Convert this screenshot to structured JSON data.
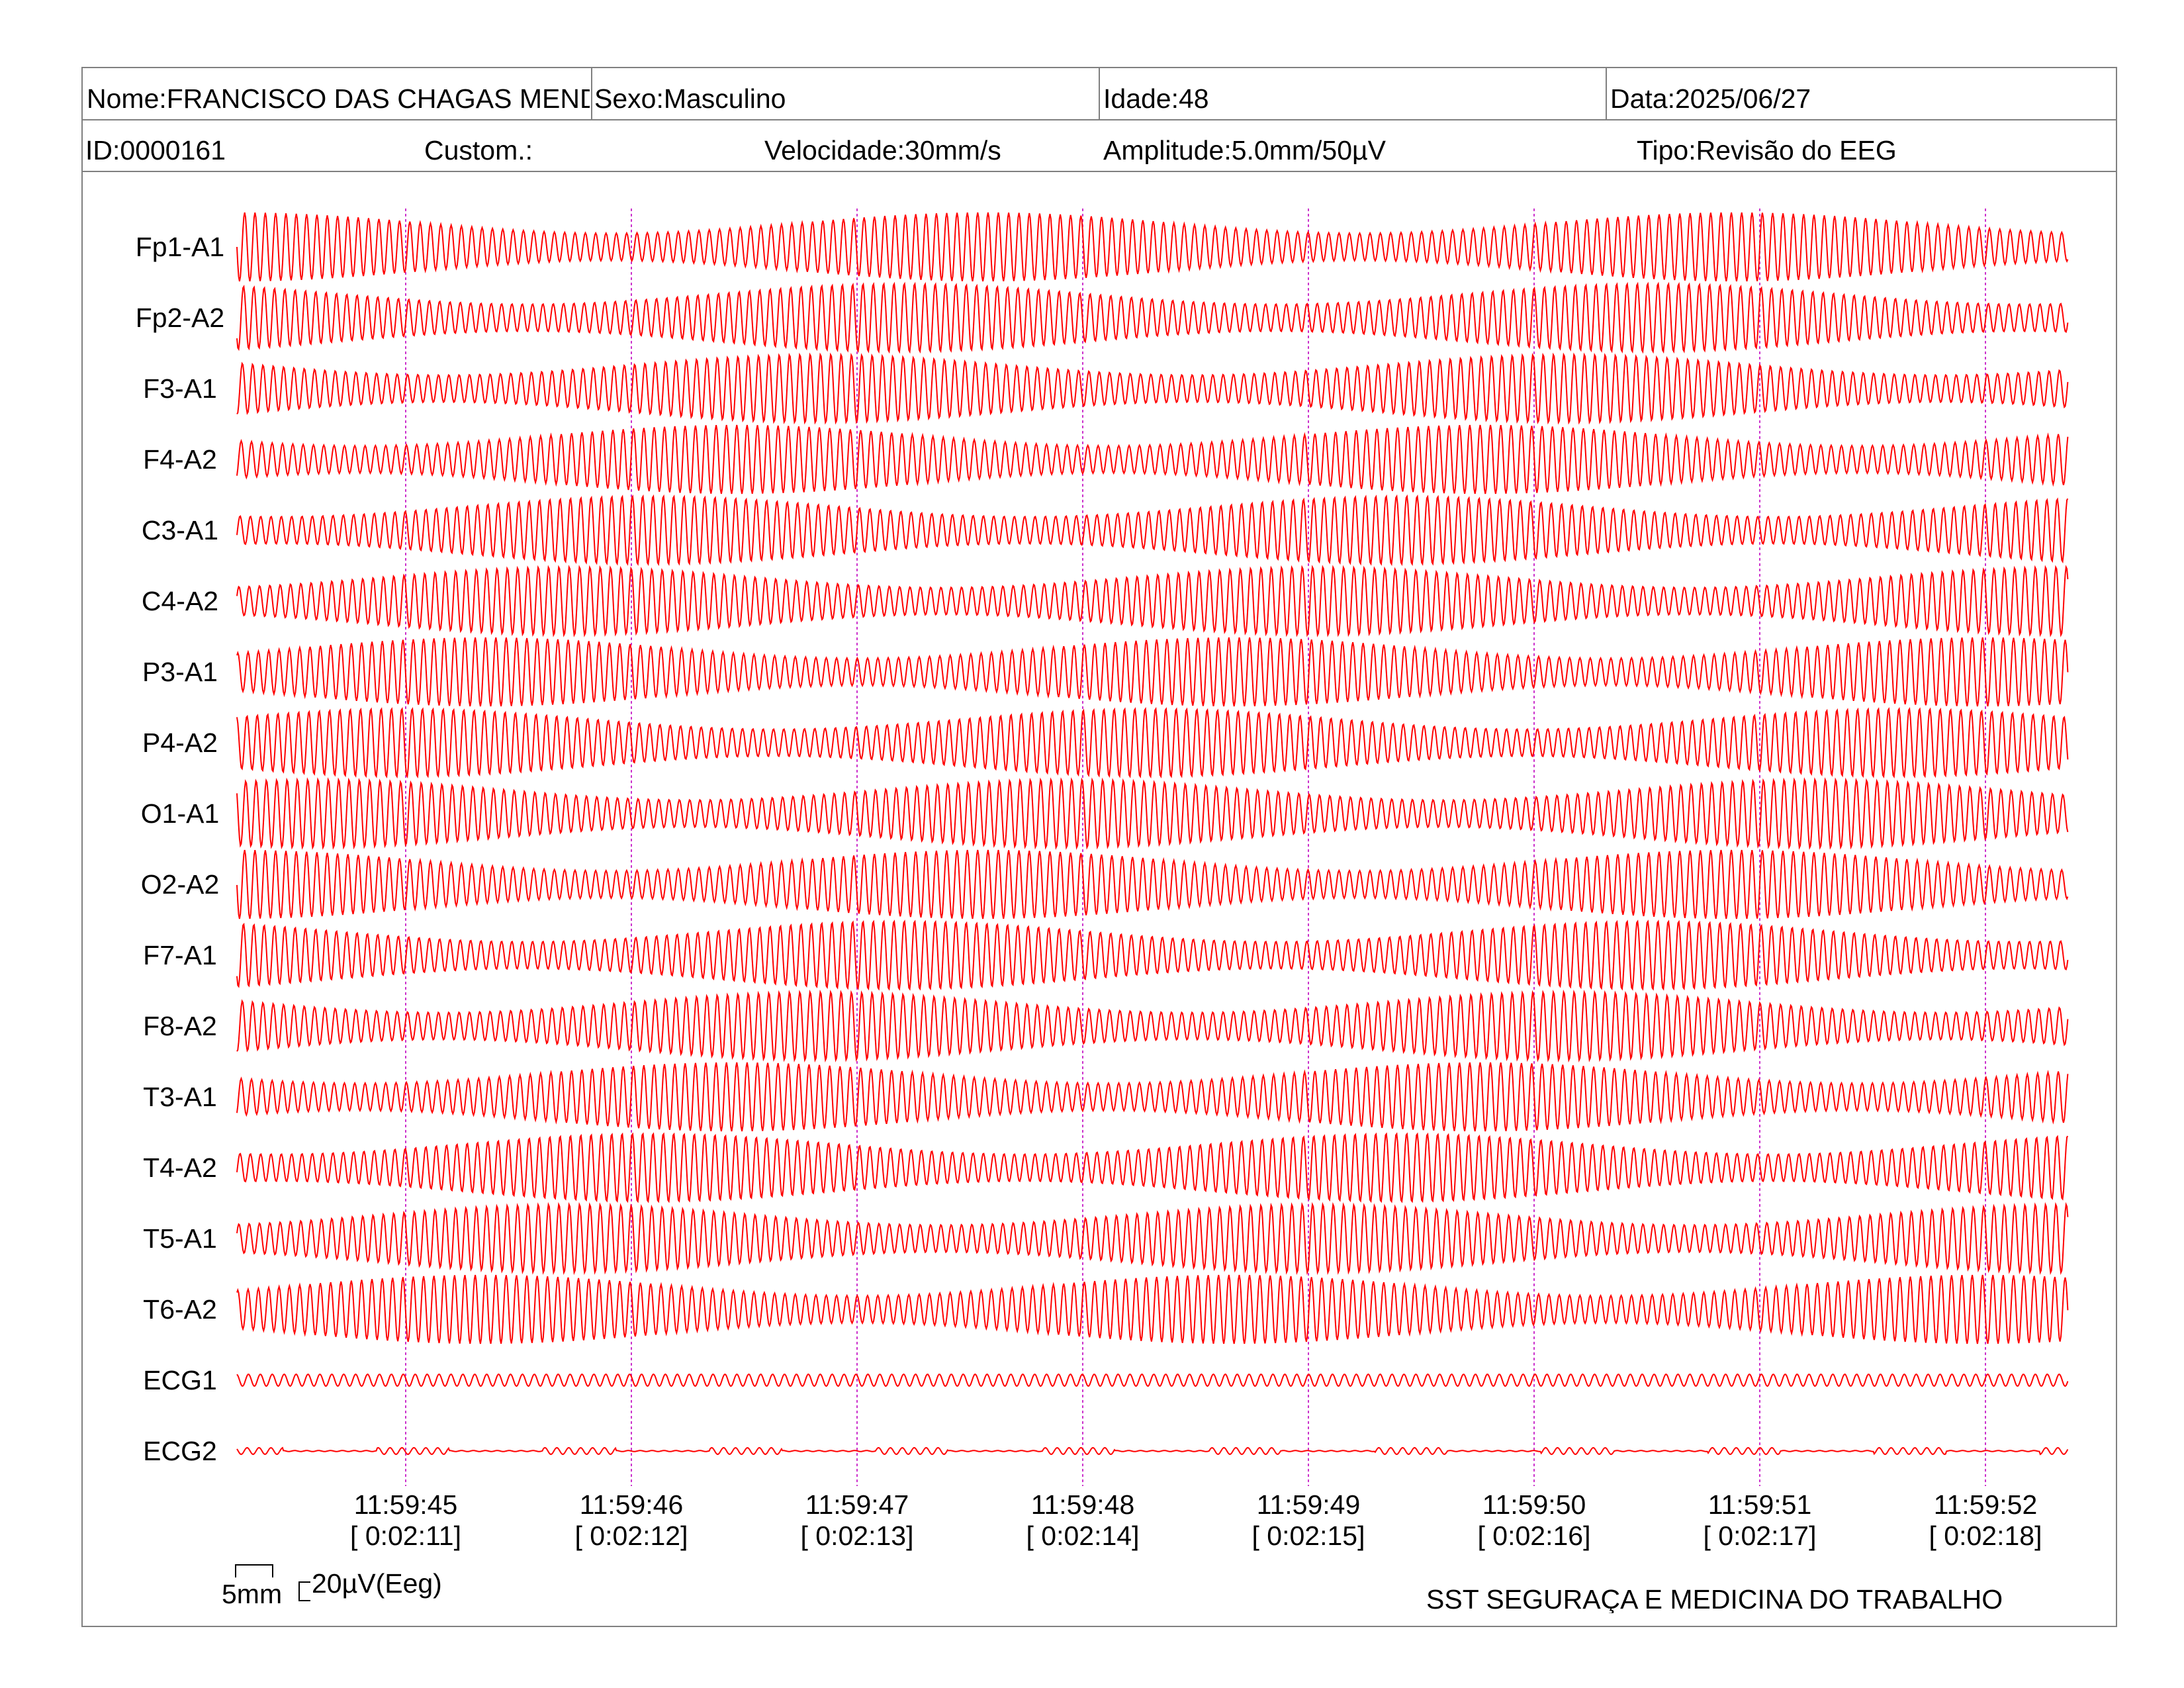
{
  "header": {
    "nome": "Nome:FRANCISCO DAS CHAGAS MENDES",
    "sexo": "Sexo:Masculino",
    "idade": "Idade:48",
    "data": "Data:2025/06/27",
    "id": "ID:0000161",
    "custom": "Custom.:",
    "velocidade": "Velocidade:30mm/s",
    "amplitude": "Amplitude:5.0mm/50µV",
    "tipo": "Tipo:Revisão do EEG"
  },
  "channels": [
    "Fp1-A1",
    "Fp2-A2",
    "F3-A1",
    "F4-A2",
    "C3-A1",
    "C4-A2",
    "P3-A1",
    "P4-A2",
    "O1-A1",
    "O2-A2",
    "F7-A1",
    "F8-A2",
    "T3-A1",
    "T4-A2",
    "T5-A1",
    "T6-A2",
    "ECG1",
    "ECG2"
  ],
  "time_marks": [
    {
      "time": "11:59:45",
      "elapsed": "[ 0:02:11]"
    },
    {
      "time": "11:59:46",
      "elapsed": "[ 0:02:12]"
    },
    {
      "time": "11:59:47",
      "elapsed": "[ 0:02:13]"
    },
    {
      "time": "11:59:48",
      "elapsed": "[ 0:02:14]"
    },
    {
      "time": "11:59:49",
      "elapsed": "[ 0:02:15]"
    },
    {
      "time": "11:59:50",
      "elapsed": "[ 0:02:16]"
    },
    {
      "time": "11:59:51",
      "elapsed": "[ 0:02:17]"
    },
    {
      "time": "11:59:52",
      "elapsed": "[ 0:02:18]"
    }
  ],
  "scale": {
    "time": "5mm",
    "amplitude": "20µV(Eeg)"
  },
  "footer": "SST SEGURAÇA E MEDICINA DO TRABALHO",
  "colors": {
    "trace": "#ff0000",
    "time_marker": "#cc33cc",
    "border": "#808080"
  }
}
